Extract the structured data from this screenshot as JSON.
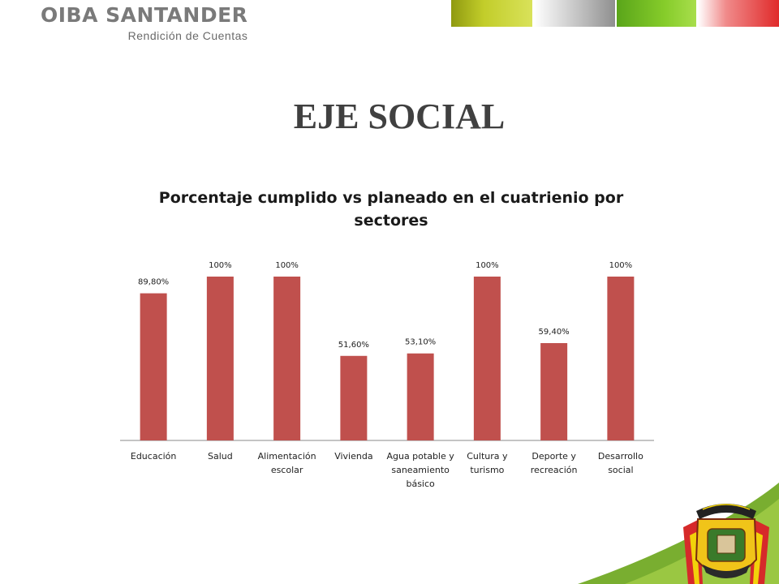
{
  "brand": {
    "name": "OIBA SANTANDER",
    "subtitle": "Rendición de Cuentas"
  },
  "slide": {
    "title": "EJE SOCIAL"
  },
  "colors": {
    "bar": "#C0504D",
    "accent_olive": "#B5C022",
    "accent_green": "#7DC52A",
    "accent_red": "#E53A3A"
  },
  "chart_data": {
    "type": "bar",
    "title_lines": [
      "Porcentaje cumplido vs planeado en el cuatrienio por",
      "sectores"
    ],
    "categories": [
      [
        "Educación"
      ],
      [
        "Salud"
      ],
      [
        "Alimentación",
        "escolar"
      ],
      [
        "Vivienda"
      ],
      [
        "Agua potable y",
        "saneamiento",
        "básico"
      ],
      [
        "Cultura y",
        "turismo"
      ],
      [
        "Deporte y",
        "recreación"
      ],
      [
        "Desarrollo",
        "social"
      ]
    ],
    "values": [
      89.8,
      100,
      100,
      51.6,
      53.1,
      100,
      59.4,
      100
    ],
    "data_labels": [
      "89,80%",
      "100%",
      "100%",
      "51,60%",
      "53,10%",
      "100%",
      "59,40%",
      "100%"
    ],
    "ylim": [
      0,
      100
    ],
    "grid": false,
    "legend": "none",
    "bar_color": "#C0504D"
  }
}
